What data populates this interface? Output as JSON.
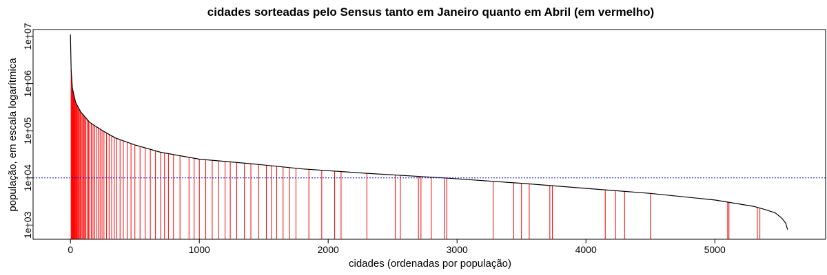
{
  "chart_data": {
    "type": "bar",
    "title": "cidades sorteadas pelo Sensus tanto em Janeiro quanto em Abril (em vermelho)",
    "xlabel": "cidades (ordenadas por população)",
    "ylabel": "população, em escala logarítmica",
    "y_scale": "log",
    "xlim": [
      -290,
      5860
    ],
    "ylim": [
      500,
      14000000
    ],
    "x_ticks": [
      0,
      1000,
      2000,
      3000,
      4000,
      5000
    ],
    "x_tick_labels": [
      "0",
      "1000",
      "2000",
      "3000",
      "4000",
      "5000"
    ],
    "y_ticks": [
      1000,
      10000,
      100000,
      1000000,
      10000000
    ],
    "y_tick_labels": [
      "1e+03",
      "1e+04",
      "1e+05",
      "1e+06",
      "1e+07"
    ],
    "grid": false,
    "colors": {
      "population_curve": "#000000",
      "selected_cities": "#ff0000",
      "reference_line": "#0000cc"
    },
    "population_curve": {
      "x": [
        0,
        5,
        15,
        40,
        80,
        150,
        250,
        350,
        500,
        700,
        1000,
        1400,
        1800,
        2300,
        2900,
        3500,
        4000,
        4500,
        5000,
        5300,
        5400,
        5470,
        5520,
        5550,
        5565
      ],
      "y": [
        11000000,
        2000000,
        800000,
        400000,
        250000,
        150000,
        100000,
        70000,
        50000,
        35000,
        25000,
        20000,
        15500,
        12500,
        10000,
        7700,
        6000,
        4700,
        3400,
        2500,
        2100,
        1800,
        1400,
        1100,
        800
      ]
    },
    "reference_line": {
      "y": 10000
    },
    "highlighted_cities": [
      5,
      10,
      14,
      18,
      22,
      26,
      30,
      35,
      40,
      45,
      50,
      56,
      62,
      68,
      75,
      82,
      90,
      98,
      105,
      112,
      120,
      130,
      140,
      150,
      162,
      175,
      188,
      200,
      215,
      230,
      245,
      260,
      280,
      300,
      320,
      340,
      360,
      385,
      410,
      440,
      470,
      500,
      540,
      580,
      620,
      660,
      700,
      730,
      760,
      800,
      850,
      920,
      960,
      1000,
      1050,
      1100,
      1150,
      1200,
      1240,
      1290,
      1350,
      1400,
      1460,
      1520,
      1560,
      1600,
      1650,
      1700,
      1750,
      1850,
      1950,
      2050,
      2100,
      2300,
      2520,
      2560,
      2700,
      2720,
      2800,
      2900,
      2920,
      3280,
      3440,
      3500,
      3560,
      3720,
      3740,
      4150,
      4230,
      4300,
      4500,
      5100,
      5110,
      5330,
      5350
    ]
  }
}
